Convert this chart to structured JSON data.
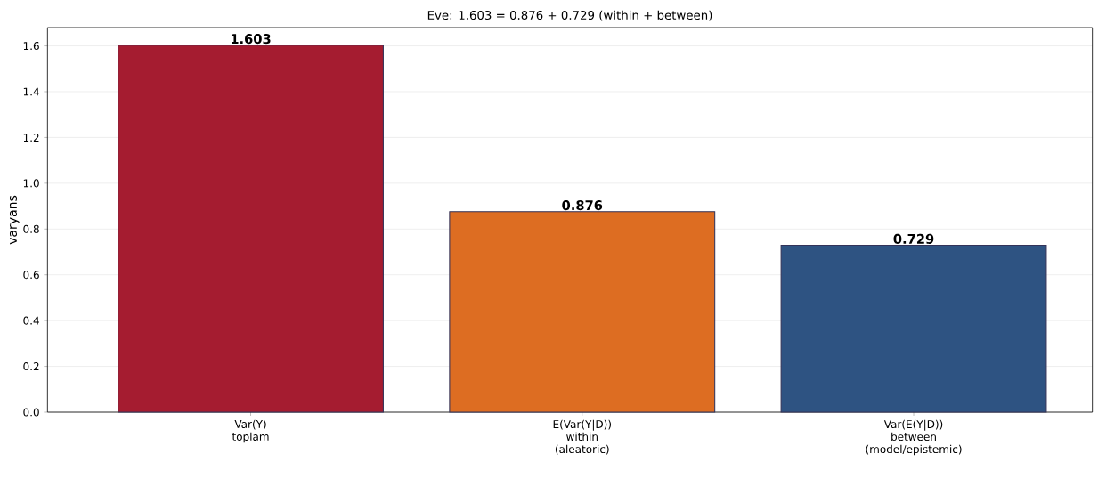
{
  "chart_data": {
    "type": "bar",
    "title": "Eve: 1.603 = 0.876 + 0.729  (within + between)",
    "ylabel": "varyans",
    "categories": [
      "Var(Y)\ntoplam",
      "E(Var(Y|D))\nwithin\n(aleatoric)",
      "Var(E(Y|D))\nbetween\n(model/epistemic)"
    ],
    "values": [
      1.603,
      0.876,
      0.729
    ],
    "colors": [
      "#a51c30",
      "#dd6d22",
      "#2e5382"
    ],
    "ylim": [
      0,
      1.68
    ],
    "yticks": [
      {
        "value": 0,
        "label": "0.0"
      },
      0.2,
      0.4,
      0.6,
      0.8,
      {
        "value": 1,
        "label": "1.0"
      },
      1.2,
      1.4,
      1.6
    ],
    "grid": "y",
    "data_labels": true
  }
}
